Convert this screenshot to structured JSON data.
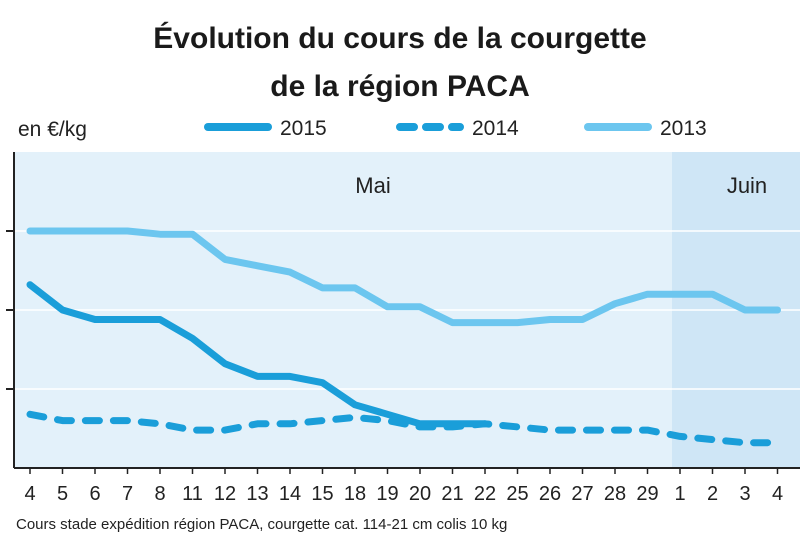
{
  "chart_data": {
    "type": "line",
    "title": "Évolution du cours de la courgette",
    "subtitle": "de la région PACA",
    "ylabel": "en €/kg",
    "categories": [
      "4",
      "5",
      "6",
      "7",
      "8",
      "11",
      "12",
      "13",
      "14",
      "15",
      "18",
      "19",
      "20",
      "21",
      "22",
      "25",
      "26",
      "27",
      "28",
      "29",
      "1",
      "2",
      "3",
      "4"
    ],
    "months": [
      {
        "label": "Mai",
        "start": "4",
        "end": "29"
      },
      {
        "label": "Juin",
        "start": "1",
        "end": "4"
      }
    ],
    "ylim": [
      0,
      1
    ],
    "y_gridlines": [
      0.25,
      0.5,
      0.75
    ],
    "grid": true,
    "legend_position": "top",
    "series": [
      {
        "name": "2015",
        "style": "solid",
        "color": "#1a9ed9",
        "values": [
          0.58,
          0.5,
          0.47,
          0.47,
          0.47,
          0.41,
          0.33,
          0.29,
          0.29,
          0.27,
          0.2,
          0.17,
          0.14,
          0.14,
          0.14,
          null,
          null,
          null,
          null,
          null,
          null,
          null,
          null,
          null
        ]
      },
      {
        "name": "2014",
        "style": "dashed",
        "color": "#1a9ed9",
        "values": [
          0.17,
          0.15,
          0.15,
          0.15,
          0.14,
          0.12,
          0.12,
          0.14,
          0.14,
          0.15,
          0.16,
          0.15,
          0.13,
          0.13,
          0.14,
          0.13,
          0.12,
          0.12,
          0.12,
          0.12,
          0.1,
          0.09,
          0.08,
          0.08
        ]
      },
      {
        "name": "2013",
        "style": "solid",
        "color": "#6cc6ef",
        "values": [
          0.75,
          0.75,
          0.75,
          0.75,
          0.74,
          0.74,
          0.66,
          0.64,
          0.62,
          0.57,
          0.57,
          0.51,
          0.51,
          0.46,
          0.46,
          0.46,
          0.47,
          0.47,
          0.52,
          0.55,
          0.55,
          0.55,
          0.5,
          0.5
        ]
      }
    ],
    "source": "Cours stade expédition région PACA, courgette cat. 114-21 cm colis 10 kg"
  },
  "colors": {
    "plot_bg_may": "#e3f1fa",
    "plot_bg_june": "#cfe6f6",
    "grid": "#ffffff",
    "axis": "#222222",
    "dark_line": "#1a9ed9",
    "light_line": "#6cc6ef"
  }
}
